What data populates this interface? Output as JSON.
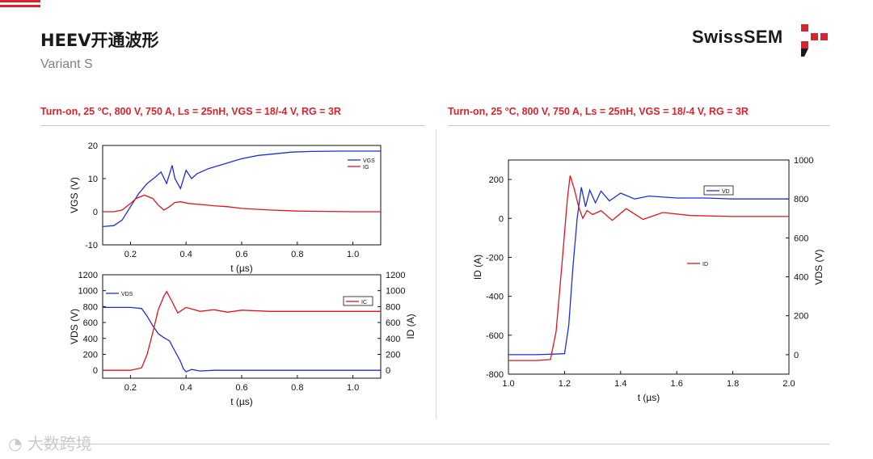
{
  "page": {
    "title": "HEEV开通波形",
    "subtitle": "Variant S",
    "logo": "SwissSEM",
    "watermark": "大数跨境"
  },
  "headings": {
    "left": "Turn-on, 25 °C, 800 V, 750 A, Ls = 25nH, VGS = 18/-4 V, RG = 3R",
    "right": "Turn-on, 25 °C, 800 V, 750 A, Ls = 25nH, VGS = 18/-4 V, RG = 3R"
  },
  "colors": {
    "accent": "#d9232d",
    "blue": "#1f2fd6",
    "red": "#e0141e"
  },
  "chart_data": [
    {
      "id": "gate",
      "type": "line",
      "xlabel": "t (µs)",
      "ylabel": "VGS (V)",
      "xlim": [
        0.1,
        1.1
      ],
      "ylim": [
        -10,
        20
      ],
      "xticks": [
        "0.2",
        "0.4",
        "0.6",
        "0.8",
        "1.0"
      ],
      "xtick_values": [
        0.2,
        0.4,
        0.6,
        0.8,
        1.0
      ],
      "yticks": [
        "-10",
        "0",
        "10",
        "20"
      ],
      "ytick_values": [
        -10,
        0,
        10,
        20
      ],
      "legend": [
        "VGS",
        "IG"
      ],
      "legend_position": "top-right",
      "series": [
        {
          "name": "VGS",
          "color": "blue",
          "x": [
            0.1,
            0.14,
            0.17,
            0.2,
            0.23,
            0.26,
            0.29,
            0.31,
            0.33,
            0.35,
            0.36,
            0.38,
            0.4,
            0.42,
            0.44,
            0.48,
            0.52,
            0.56,
            0.6,
            0.66,
            0.72,
            0.78,
            0.85,
            0.95,
            1.1
          ],
          "y": [
            -4.5,
            -4.2,
            -2.5,
            1.5,
            5.5,
            8.5,
            10.5,
            12,
            8.5,
            14,
            10,
            7,
            12.5,
            10,
            11.5,
            13,
            14,
            15,
            16,
            17,
            17.5,
            18,
            18.2,
            18.3,
            18.3
          ]
        },
        {
          "name": "IG",
          "color": "red",
          "x": [
            0.1,
            0.14,
            0.17,
            0.2,
            0.22,
            0.25,
            0.28,
            0.3,
            0.32,
            0.34,
            0.36,
            0.38,
            0.41,
            0.45,
            0.5,
            0.55,
            0.6,
            0.7,
            0.8,
            0.9,
            1.0,
            1.1
          ],
          "y": [
            0,
            0,
            0.5,
            2.5,
            4,
            5,
            4,
            2,
            0.5,
            1.5,
            2.8,
            3,
            2.5,
            2.2,
            1.8,
            1.5,
            1,
            0.5,
            0.2,
            0.1,
            0,
            0
          ]
        }
      ]
    },
    {
      "id": "vds",
      "type": "line",
      "xlabel": "t (µs)",
      "ylabel": "VDS (V)",
      "y2label": "ID (A)",
      "xlim": [
        0.1,
        1.1
      ],
      "ylim": [
        -100,
        1200
      ],
      "y2lim": [
        -100,
        1200
      ],
      "xticks": [
        "0.2",
        "0.4",
        "0.6",
        "0.8",
        "1.0"
      ],
      "xtick_values": [
        0.2,
        0.4,
        0.6,
        0.8,
        1.0
      ],
      "yticks": [
        "0",
        "200",
        "400",
        "600",
        "800",
        "1000",
        "1200"
      ],
      "ytick_values": [
        0,
        200,
        400,
        600,
        800,
        1000,
        1200
      ],
      "y2ticks": [
        "0",
        "200",
        "400",
        "600",
        "800",
        "1000",
        "1200"
      ],
      "legend": [
        "VDS",
        "IC"
      ],
      "series": [
        {
          "name": "VDS",
          "color": "blue",
          "x": [
            0.1,
            0.2,
            0.24,
            0.26,
            0.28,
            0.3,
            0.32,
            0.34,
            0.36,
            0.38,
            0.39,
            0.4,
            0.42,
            0.45,
            0.5,
            0.6,
            0.7,
            1.1
          ],
          "y": [
            790,
            790,
            775,
            680,
            560,
            460,
            410,
            370,
            240,
            110,
            20,
            -20,
            10,
            -10,
            0,
            0,
            0,
            0
          ]
        },
        {
          "name": "IC",
          "color": "red",
          "x": [
            0.1,
            0.2,
            0.24,
            0.26,
            0.28,
            0.3,
            0.32,
            0.33,
            0.35,
            0.37,
            0.4,
            0.45,
            0.5,
            0.55,
            0.6,
            0.7,
            0.8,
            1.1
          ],
          "y": [
            0,
            0,
            30,
            200,
            470,
            760,
            930,
            990,
            860,
            720,
            790,
            740,
            760,
            730,
            755,
            740,
            740,
            740
          ]
        }
      ]
    },
    {
      "id": "drain",
      "type": "line",
      "xlabel": "t (µs)",
      "ylabel": "ID (A)",
      "y2label": "VDS (V)",
      "xlim": [
        1.0,
        2.0
      ],
      "ylim": [
        -800,
        300
      ],
      "y2lim": [
        -100,
        1000
      ],
      "xticks": [
        "1.0",
        "1.2",
        "1.4",
        "1.6",
        "1.8",
        "2.0"
      ],
      "xtick_values": [
        1.0,
        1.2,
        1.4,
        1.6,
        1.8,
        2.0
      ],
      "yticks": [
        "-800",
        "-600",
        "-400",
        "-200",
        "0",
        "200"
      ],
      "ytick_values": [
        -800,
        -600,
        -400,
        -200,
        0,
        200
      ],
      "y2ticks": [
        "0",
        "200",
        "400",
        "600",
        "800",
        "1000"
      ],
      "y2tick_values": [
        0,
        200,
        400,
        600,
        800,
        1000
      ],
      "legend": [
        "VD",
        "ID"
      ],
      "series": [
        {
          "name": "VD",
          "axis": "y2",
          "color": "blue",
          "x": [
            1.0,
            1.1,
            1.2,
            1.215,
            1.23,
            1.245,
            1.26,
            1.275,
            1.29,
            1.31,
            1.33,
            1.36,
            1.4,
            1.45,
            1.5,
            1.6,
            1.7,
            1.8,
            1.9,
            2.0
          ],
          "y": [
            0,
            0,
            5,
            150,
            450,
            700,
            860,
            760,
            845,
            780,
            840,
            790,
            830,
            800,
            815,
            805,
            805,
            800,
            800,
            800
          ]
        },
        {
          "name": "ID",
          "axis": "y",
          "color": "red",
          "x": [
            1.0,
            1.1,
            1.15,
            1.17,
            1.19,
            1.21,
            1.22,
            1.235,
            1.25,
            1.265,
            1.28,
            1.3,
            1.33,
            1.37,
            1.42,
            1.48,
            1.55,
            1.65,
            1.8,
            2.0
          ],
          "y": [
            -730,
            -730,
            -725,
            -580,
            -250,
            100,
            220,
            150,
            60,
            0,
            40,
            20,
            40,
            -10,
            50,
            -5,
            30,
            15,
            10,
            10
          ]
        }
      ]
    }
  ]
}
